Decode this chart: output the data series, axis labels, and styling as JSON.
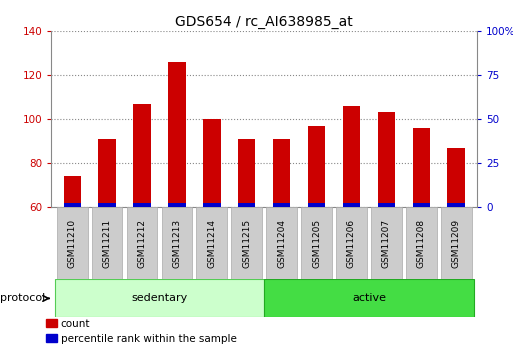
{
  "title": "GDS654 / rc_AI638985_at",
  "samples": [
    "GSM11210",
    "GSM11211",
    "GSM11212",
    "GSM11213",
    "GSM11214",
    "GSM11215",
    "GSM11204",
    "GSM11205",
    "GSM11206",
    "GSM11207",
    "GSM11208",
    "GSM11209"
  ],
  "count_values": [
    74,
    91,
    107,
    126,
    100,
    91,
    91,
    97,
    106,
    103,
    96,
    87
  ],
  "percentile_values": [
    2,
    2,
    2,
    2,
    2,
    2,
    2,
    2,
    2,
    2,
    2,
    2
  ],
  "ylim_left": [
    60,
    140
  ],
  "ylim_right": [
    0,
    100
  ],
  "yticks_left": [
    60,
    80,
    100,
    120,
    140
  ],
  "yticks_right": [
    0,
    25,
    50,
    75,
    100
  ],
  "ytick_labels_right": [
    "0",
    "25",
    "50",
    "75",
    "100%"
  ],
  "groups": [
    {
      "label": "sedentary",
      "indices": [
        0,
        1,
        2,
        3,
        4,
        5
      ],
      "color": "#ccffcc",
      "edge": "#55cc55"
    },
    {
      "label": "active",
      "indices": [
        6,
        7,
        8,
        9,
        10,
        11
      ],
      "color": "#44dd44",
      "edge": "#22aa22"
    }
  ],
  "bar_width": 0.5,
  "count_color": "#cc0000",
  "percentile_color": "#0000cc",
  "bg_color": "#ffffff",
  "tick_label_color_left": "#cc0000",
  "tick_label_color_right": "#0000cc",
  "legend_count_label": "count",
  "legend_percentile_label": "percentile rank within the sample",
  "title_fontsize": 10,
  "axis_fontsize": 7.5,
  "sample_box_color": "#cccccc",
  "sample_box_edge": "#aaaaaa"
}
